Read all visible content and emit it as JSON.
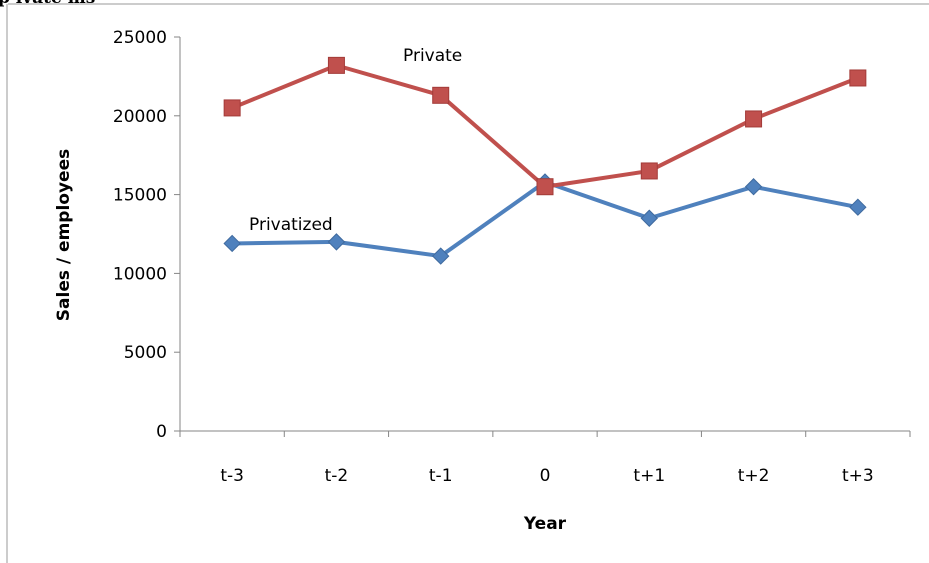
{
  "header_fragment": "p ivate ms",
  "chart_data": {
    "type": "line",
    "categories": [
      "t-3",
      "t-2",
      "t-1",
      "0",
      "t+1",
      "t+2",
      "t+3"
    ],
    "series": [
      {
        "name": "Private",
        "color": "#c0504d",
        "marker": "square",
        "values": [
          20500,
          23200,
          21300,
          15500,
          16500,
          19800,
          22400
        ]
      },
      {
        "name": "Privatized",
        "color": "#4f81bd",
        "marker": "diamond",
        "values": [
          11900,
          12000,
          11100,
          15800,
          13500,
          15500,
          14200
        ]
      }
    ],
    "title": "",
    "xlabel": "Year",
    "ylabel": "Sales / employees",
    "ylim": [
      0,
      25000
    ],
    "yticks": [
      "0",
      "5000",
      "10000",
      "15000",
      "20000",
      "25000"
    ],
    "grid": false,
    "legend": "inline labels"
  }
}
